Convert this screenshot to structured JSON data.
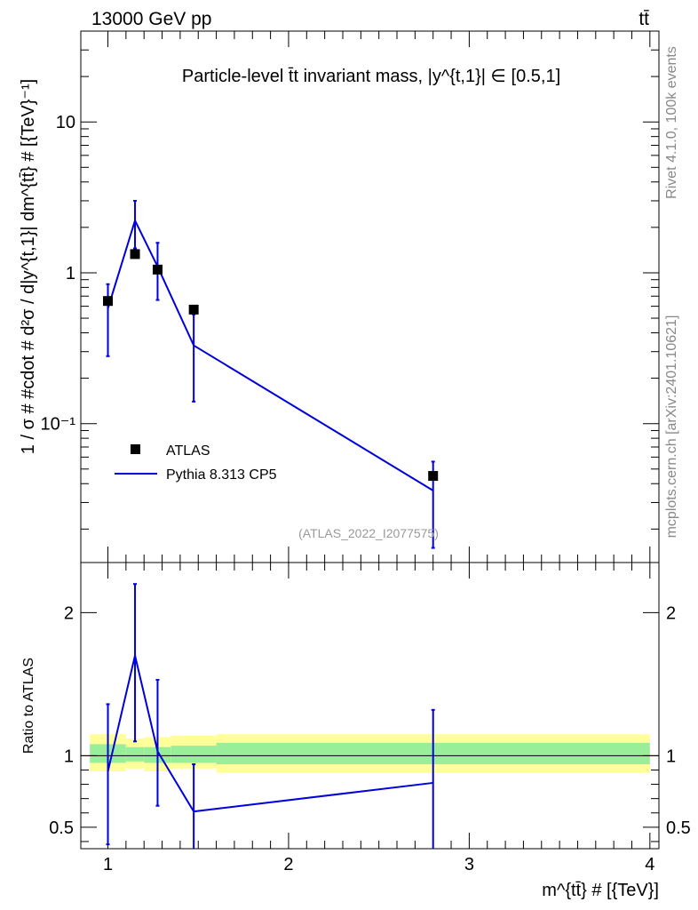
{
  "header": {
    "left_label": "13000 GeV pp",
    "right_label": "tt̄"
  },
  "side_labels": {
    "rivet": "Rivet 4.1.0,  100k events",
    "mcplots": "mcplots.cern.ch [arXiv:2401.10621]"
  },
  "chart_data": [
    {
      "type": "line",
      "panel": "main",
      "title": "Particle-level t̄t invariant mass, |y^{t,1}| ∈ [0.5,1]",
      "watermark": "(ATLAS_2022_I2077575)",
      "xlabel": "m^{tt̄} # [{TeV}]",
      "ylabel": "1 / σ # #cdot # d²σ / d|y^{t,1}| dm^{tt̄} # [{TeV}⁻¹]",
      "xlim": [
        0.85,
        4.05
      ],
      "ylim": [
        0.012,
        40
      ],
      "yscale": "log",
      "y_ticks": [
        {
          "value": 0.1,
          "label": "10⁻¹"
        },
        {
          "value": 1,
          "label": "1"
        },
        {
          "value": 10,
          "label": "10"
        }
      ],
      "legend_position": "lower-left",
      "series": [
        {
          "name": "ATLAS",
          "kind": "points",
          "color": "#000000",
          "x": [
            1.0,
            1.15,
            1.275,
            1.475,
            2.8
          ],
          "y": [
            0.65,
            1.33,
            1.05,
            0.57,
            0.045
          ]
        },
        {
          "name": "Pythia 8.313 CP5",
          "kind": "line",
          "color": "#0000dd",
          "x": [
            1.0,
            1.15,
            1.275,
            1.475,
            2.8
          ],
          "y": [
            0.58,
            2.22,
            1.1,
            0.33,
            0.036
          ],
          "y_err_low": [
            0.28,
            1.45,
            0.66,
            0.14,
            0.015
          ],
          "y_err_high": [
            0.84,
            3.0,
            1.58,
            0.53,
            0.056
          ]
        }
      ]
    },
    {
      "type": "line",
      "panel": "ratio",
      "ylabel": "Ratio to ATLAS",
      "xlim": [
        0.85,
        4.05
      ],
      "ylim": [
        0.35,
        2.35
      ],
      "x_ticks": [
        1,
        2,
        3,
        4
      ],
      "y_ticks": [
        {
          "value": 0.5,
          "label": "0.5"
        },
        {
          "value": 1,
          "label": "1"
        },
        {
          "value": 2,
          "label": "2"
        }
      ],
      "bands": {
        "bin_edges": [
          0.9,
          1.1,
          1.2,
          1.35,
          1.6,
          4.0
        ],
        "inner_low": [
          0.95,
          0.96,
          0.95,
          0.95,
          0.94
        ],
        "inner_high": [
          1.08,
          1.06,
          1.06,
          1.07,
          1.09
        ],
        "outer_low": [
          0.89,
          0.91,
          0.89,
          0.91,
          0.88
        ],
        "outer_high": [
          1.15,
          1.12,
          1.13,
          1.14,
          1.15
        ],
        "inner_color": "#99ee99",
        "outer_color": "#ffff99"
      },
      "series": [
        {
          "name": "Pythia 8.313 CP5",
          "color": "#0000dd",
          "x": [
            1.0,
            1.15,
            1.275,
            1.475,
            2.8
          ],
          "y": [
            0.89,
            1.7,
            1.03,
            0.61,
            0.81
          ],
          "y_err_low": [
            0.38,
            1.1,
            0.65,
            0.3,
            0.3
          ],
          "y_err_high": [
            1.36,
            2.2,
            1.53,
            0.94,
            1.32
          ]
        }
      ]
    }
  ]
}
